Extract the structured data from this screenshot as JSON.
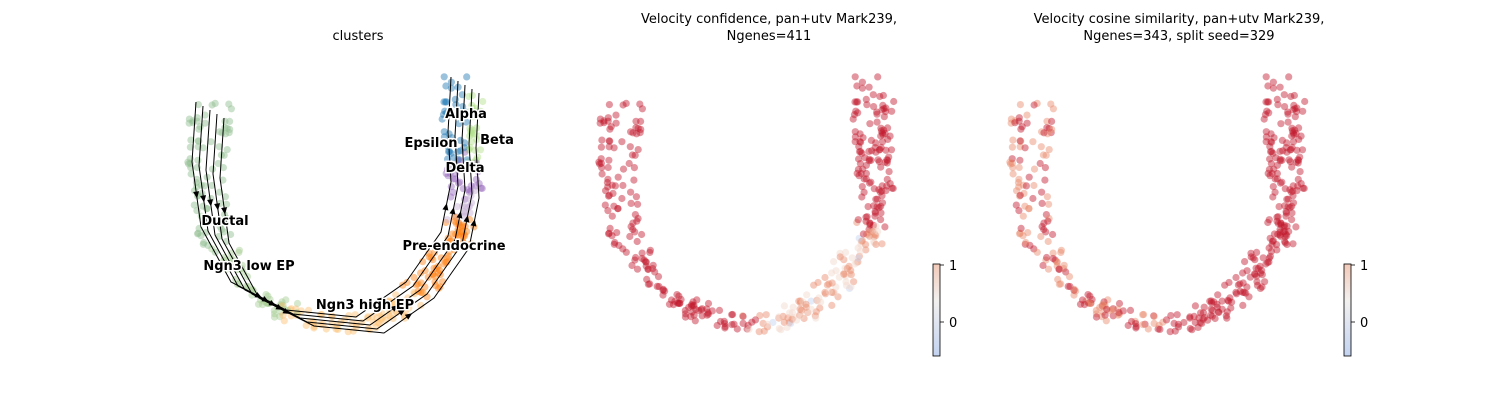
{
  "chart_data": [
    {
      "type": "scatter",
      "title": "clusters",
      "xlabel": "",
      "ylabel": "",
      "grid": false,
      "legend": "on data",
      "clusters": [
        {
          "name": "Ductal",
          "color": "#8fbc8f"
        },
        {
          "name": "Ngn3 low EP",
          "color": "#a3cd91"
        },
        {
          "name": "Ngn3 high EP",
          "color": "#fdbf6f"
        },
        {
          "name": "Pre-endocrine",
          "color": "#ff7f0e"
        },
        {
          "name": "Alpha",
          "color": "#1f77b4"
        },
        {
          "name": "Beta",
          "color": "#b2df8a"
        },
        {
          "name": "Delta",
          "color": "#9467bd"
        },
        {
          "name": "Epsilon",
          "color": "#c5b0d5"
        }
      ],
      "streamlines": true
    },
    {
      "type": "scatter",
      "title": "Velocity confidence, pan+utv Mark239,\nNgenes=411",
      "title_lines": [
        "Velocity confidence, pan+utv Mark239,",
        "Ngenes=411"
      ],
      "colormap": "coolwarm",
      "colorbar_ticks": [
        "1",
        "0"
      ],
      "xlabel": "",
      "ylabel": "",
      "grid": false
    },
    {
      "type": "scatter",
      "title": "Velocity cosine similarity, pan+utv Mark239,\nNgenes=343, split seed=329",
      "title_lines": [
        "Velocity cosine similarity, pan+utv Mark239,",
        "Ngenes=343, split seed=329"
      ],
      "colormap": "coolwarm",
      "colorbar_ticks": [
        "1",
        "0"
      ],
      "xlabel": "",
      "ylabel": "",
      "grid": false
    }
  ],
  "colors": {
    "high": "#c0172b",
    "mid_high": "#e8896a",
    "neutral": "#f2d7cc",
    "low": "#c3d3f0"
  }
}
